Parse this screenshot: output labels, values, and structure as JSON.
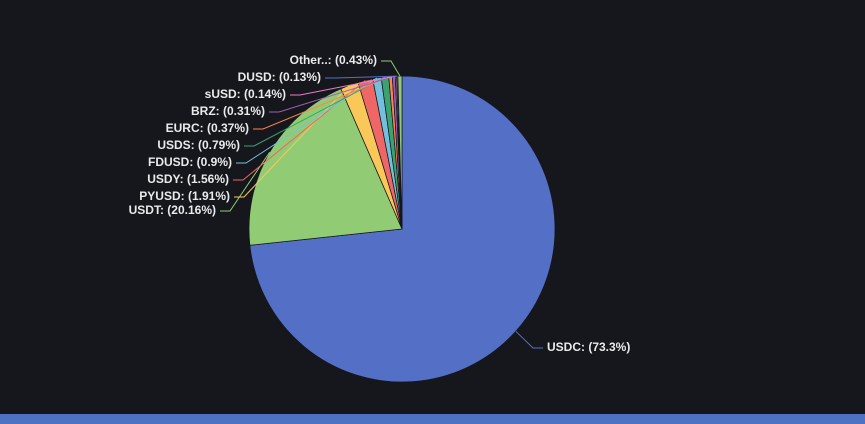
{
  "page": {
    "background": "#16171c",
    "bottom_bar_color": "#4d72c4"
  },
  "chart_data": {
    "type": "pie",
    "legend_position": "none",
    "start_angle": "top",
    "direction": "clockwise",
    "label_format": "{name}: ({value}%)",
    "label_color": "#e9eaec",
    "background": "#16171c",
    "series": [
      {
        "name": "USDC",
        "value": 73.3,
        "color": "#5470c6"
      },
      {
        "name": "USDT",
        "value": 20.16,
        "color": "#91cc75"
      },
      {
        "name": "PYUSD",
        "value": 1.91,
        "color": "#fac858"
      },
      {
        "name": "USDY",
        "value": 1.56,
        "color": "#ee6666"
      },
      {
        "name": "FDUSD",
        "value": 0.9,
        "color": "#73c0de"
      },
      {
        "name": "USDS",
        "value": 0.79,
        "color": "#3ba272"
      },
      {
        "name": "EURC",
        "value": 0.37,
        "color": "#fc8452"
      },
      {
        "name": "BRZ",
        "value": 0.31,
        "color": "#9a60b4"
      },
      {
        "name": "sUSD",
        "value": 0.14,
        "color": "#ea7ccc"
      },
      {
        "name": "DUSD",
        "value": 0.13,
        "color": "#5470c6"
      },
      {
        "name": "Other..",
        "value": 0.43,
        "color": "#91cc75"
      }
    ],
    "labels_as_displayed": [
      "Other..: (0.43%)",
      "DUSD: (0.13%)",
      "sUSD: (0.14%)",
      "BRZ: (0.31%)",
      "EURC: (0.37%)",
      "USDS: (0.79%)",
      "FDUSD: (0.9%)",
      "USDY: (1.56%)",
      "PYUSD: (1.91%)",
      "USDT: (20.16%)",
      "USDC: (73.3%)"
    ]
  }
}
